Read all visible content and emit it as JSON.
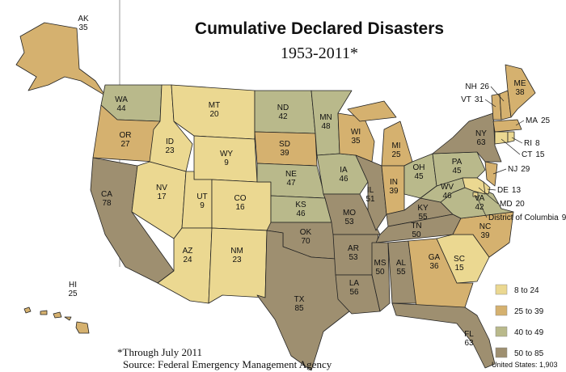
{
  "title": "Cumulative  Declared Disasters",
  "subtitle": "1953-2011*",
  "states": [
    {
      "name": "AK",
      "value": 35
    },
    {
      "name": "HI",
      "value": 25
    },
    {
      "name": "WA",
      "value": 44
    },
    {
      "name": "OR",
      "value": 27
    },
    {
      "name": "CA",
      "value": 78
    },
    {
      "name": "ID",
      "value": 23
    },
    {
      "name": "NV",
      "value": 17
    },
    {
      "name": "MT",
      "value": 20
    },
    {
      "name": "WY",
      "value": 9
    },
    {
      "name": "UT",
      "value": 9
    },
    {
      "name": "CO",
      "value": 16
    },
    {
      "name": "AZ",
      "value": 24
    },
    {
      "name": "NM",
      "value": 23
    },
    {
      "name": "ND",
      "value": 42
    },
    {
      "name": "SD",
      "value": 39
    },
    {
      "name": "NE",
      "value": 47
    },
    {
      "name": "KS",
      "value": 46
    },
    {
      "name": "OK",
      "value": 70
    },
    {
      "name": "TX",
      "value": 85
    },
    {
      "name": "MN",
      "value": 48
    },
    {
      "name": "IA",
      "value": 46
    },
    {
      "name": "MO",
      "value": 53
    },
    {
      "name": "AR",
      "value": 53
    },
    {
      "name": "LA",
      "value": 56
    },
    {
      "name": "WI",
      "value": 35
    },
    {
      "name": "IL",
      "value": 51
    },
    {
      "name": "MI",
      "value": 25
    },
    {
      "name": "IN",
      "value": 39
    },
    {
      "name": "OH",
      "value": 45
    },
    {
      "name": "KY",
      "value": 55
    },
    {
      "name": "TN",
      "value": 50
    },
    {
      "name": "MS",
      "value": 50
    },
    {
      "name": "AL",
      "value": 55
    },
    {
      "name": "GA",
      "value": 36
    },
    {
      "name": "FL",
      "value": 63
    },
    {
      "name": "SC",
      "value": 15
    },
    {
      "name": "NC",
      "value": 39
    },
    {
      "name": "VA",
      "value": 42
    },
    {
      "name": "WV",
      "value": 46
    },
    {
      "name": "PA",
      "value": 45
    },
    {
      "name": "NY",
      "value": 63
    },
    {
      "name": "VT",
      "value": 31
    },
    {
      "name": "NH",
      "value": 26
    },
    {
      "name": "ME",
      "value": 38
    },
    {
      "name": "MA",
      "value": 25
    },
    {
      "name": "CT",
      "value": 15
    },
    {
      "name": "RI",
      "value": 8
    },
    {
      "name": "NJ",
      "value": 29
    },
    {
      "name": "DE",
      "value": 13
    },
    {
      "name": "MD",
      "value": 20
    },
    {
      "name": "District of Columbia",
      "value": 9
    }
  ],
  "legend": [
    {
      "label": "8  to  24",
      "min": 8,
      "max": 24,
      "color": "#ebd891"
    },
    {
      "label": "25  to  39",
      "min": 25,
      "max": 39,
      "color": "#d5b16f"
    },
    {
      "label": "40  to  49",
      "min": 40,
      "max": 49,
      "color": "#b9b98b"
    },
    {
      "label": "50  to  85",
      "min": 50,
      "max": 85,
      "color": "#9e8f70"
    }
  ],
  "footnote": "*Through July 2011",
  "source": "Source: Federal Emergency Management Agency",
  "total": "United States: 1,903"
}
